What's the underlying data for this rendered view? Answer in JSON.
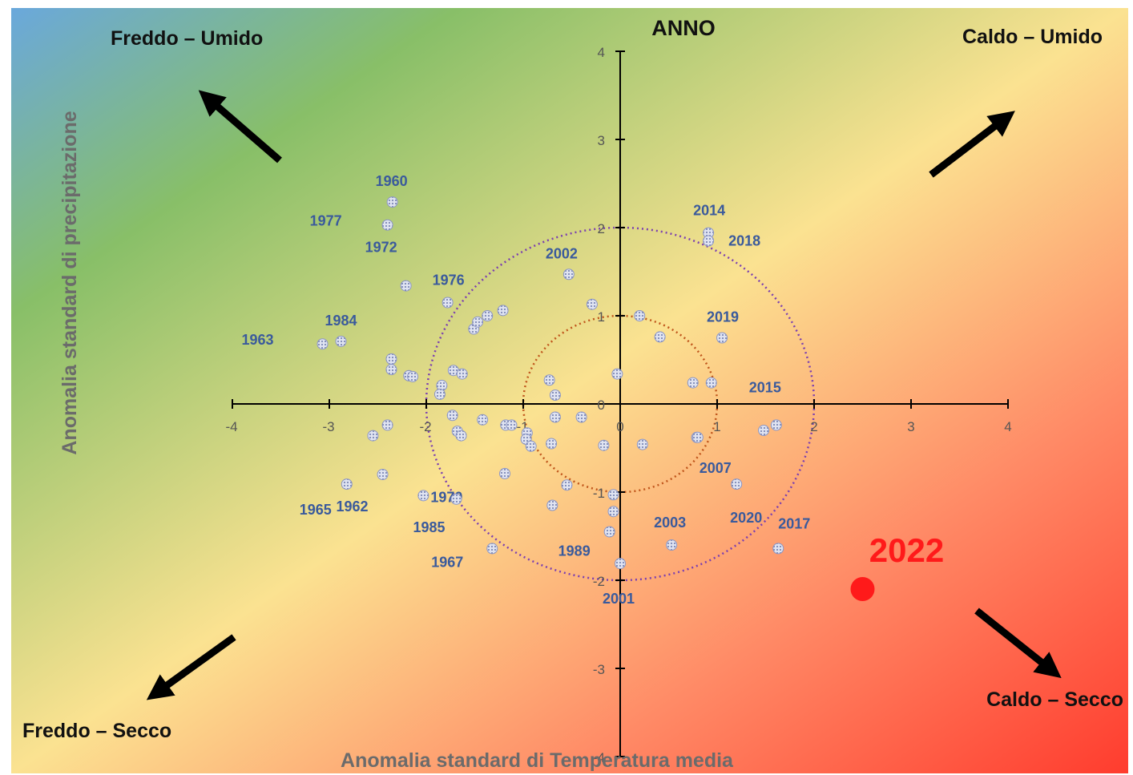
{
  "chart_data": {
    "type": "scatter",
    "title": "ANNO",
    "xlabel": "Anomalia standard di Temperatura media",
    "ylabel": "Anomalia standard di precipitazione",
    "xlim": [
      -4,
      4
    ],
    "ylim": [
      -4,
      4
    ],
    "x_ticks": [
      "-4",
      "-3",
      "-2",
      "-1",
      "0",
      "1",
      "2",
      "3",
      "4"
    ],
    "y_ticks": [
      "-4",
      "-3",
      "-2",
      "-1",
      "0",
      "1",
      "2",
      "3",
      "4"
    ],
    "grid": false,
    "reference_circles": [
      {
        "radius": 1,
        "color": "#c0561c"
      },
      {
        "radius": 2,
        "color": "#7b3fb0"
      }
    ],
    "quadrant_labels": {
      "top_left": "Freddo – Umido",
      "top_right": "Caldo – Umido",
      "bottom_left": "Freddo – Secco",
      "bottom_right": "Caldo – Secco"
    },
    "colors": {
      "cold_wet": "#6aa8dc",
      "wet": "#88bf68",
      "neutral": "#fbe291",
      "hot_dry": "#ff3c2e",
      "points": "#9aa6cf",
      "labels": "#3a5a9c",
      "highlight": "#ff1a1a"
    },
    "series": [
      {
        "points": [
          {
            "x": -2.35,
            "y": 2.29,
            "label": "1960"
          },
          {
            "x": -2.4,
            "y": 2.03,
            "label": "1977"
          },
          {
            "x": -2.21,
            "y": 1.34,
            "label": "1972"
          },
          {
            "x": -1.78,
            "y": 1.15,
            "label": "1976"
          },
          {
            "x": -3.07,
            "y": 0.68,
            "label": "1963"
          },
          {
            "x": -2.88,
            "y": 0.71,
            "label": "1984"
          },
          {
            "x": -2.36,
            "y": 0.51
          },
          {
            "x": -2.36,
            "y": 0.39
          },
          {
            "x": -2.18,
            "y": 0.32
          },
          {
            "x": -2.14,
            "y": 0.31
          },
          {
            "x": -1.84,
            "y": 0.21
          },
          {
            "x": -1.86,
            "y": 0.11
          },
          {
            "x": -1.72,
            "y": 0.38
          },
          {
            "x": -1.63,
            "y": 0.34
          },
          {
            "x": -1.51,
            "y": 0.85
          },
          {
            "x": -1.47,
            "y": 0.93
          },
          {
            "x": -1.37,
            "y": 1.0
          },
          {
            "x": -1.21,
            "y": 1.06
          },
          {
            "x": -0.29,
            "y": 1.13
          },
          {
            "x": -0.53,
            "y": 1.47,
            "label": "2002"
          },
          {
            "x": 0.2,
            "y": 1.0
          },
          {
            "x": 0.41,
            "y": 0.76
          },
          {
            "x": -0.03,
            "y": 0.34
          },
          {
            "x": -0.73,
            "y": 0.27
          },
          {
            "x": -0.67,
            "y": 0.1
          },
          {
            "x": 0.75,
            "y": 0.24
          },
          {
            "x": 0.94,
            "y": 0.24
          },
          {
            "x": 1.05,
            "y": 0.75,
            "label": "2019"
          },
          {
            "x": 0.91,
            "y": 1.94,
            "label": "2014"
          },
          {
            "x": 0.91,
            "y": 1.85,
            "label": "2018"
          },
          {
            "x": -1.73,
            "y": -0.13
          },
          {
            "x": -1.42,
            "y": -0.18
          },
          {
            "x": -1.68,
            "y": -0.31
          },
          {
            "x": -1.64,
            "y": -0.36
          },
          {
            "x": -1.18,
            "y": -0.24
          },
          {
            "x": -1.12,
            "y": -0.24
          },
          {
            "x": -0.96,
            "y": -0.33
          },
          {
            "x": -0.97,
            "y": -0.4
          },
          {
            "x": -0.92,
            "y": -0.48
          },
          {
            "x": -0.67,
            "y": -0.15
          },
          {
            "x": -0.4,
            "y": -0.15
          },
          {
            "x": -0.71,
            "y": -0.45
          },
          {
            "x": -0.17,
            "y": -0.47
          },
          {
            "x": 0.23,
            "y": -0.46
          },
          {
            "x": 0.79,
            "y": -0.38
          },
          {
            "x": 1.48,
            "y": -0.3
          },
          {
            "x": 1.61,
            "y": -0.24,
            "label": "2015"
          },
          {
            "x": 1.2,
            "y": -0.91,
            "label": "2020"
          },
          {
            "x": -2.4,
            "y": -0.24
          },
          {
            "x": -2.55,
            "y": -0.36
          },
          {
            "x": -2.45,
            "y": -0.8,
            "label": "1962"
          },
          {
            "x": -2.82,
            "y": -0.91,
            "label": "1965"
          },
          {
            "x": -2.03,
            "y": -1.04,
            "label": "1970"
          },
          {
            "x": -1.69,
            "y": -1.08,
            "label": "1985"
          },
          {
            "x": -1.19,
            "y": -0.79
          },
          {
            "x": -0.55,
            "y": -0.92
          },
          {
            "x": -0.7,
            "y": -1.15
          },
          {
            "x": -0.07,
            "y": -1.03
          },
          {
            "x": -0.07,
            "y": -1.22
          },
          {
            "x": -0.11,
            "y": -1.45,
            "label": "1989"
          },
          {
            "x": -1.32,
            "y": -1.64,
            "label": "1967"
          },
          {
            "x": 0.0,
            "y": -1.81,
            "label": "2001"
          },
          {
            "x": 0.53,
            "y": -1.6,
            "label": "2003"
          },
          {
            "x": 0.8,
            "y": -0.38,
            "label": "2007"
          },
          {
            "x": 1.63,
            "y": -1.64,
            "label": "2017"
          },
          {
            "x": 2.5,
            "y": -2.1,
            "label": "2022",
            "highlight": true
          }
        ]
      }
    ]
  }
}
